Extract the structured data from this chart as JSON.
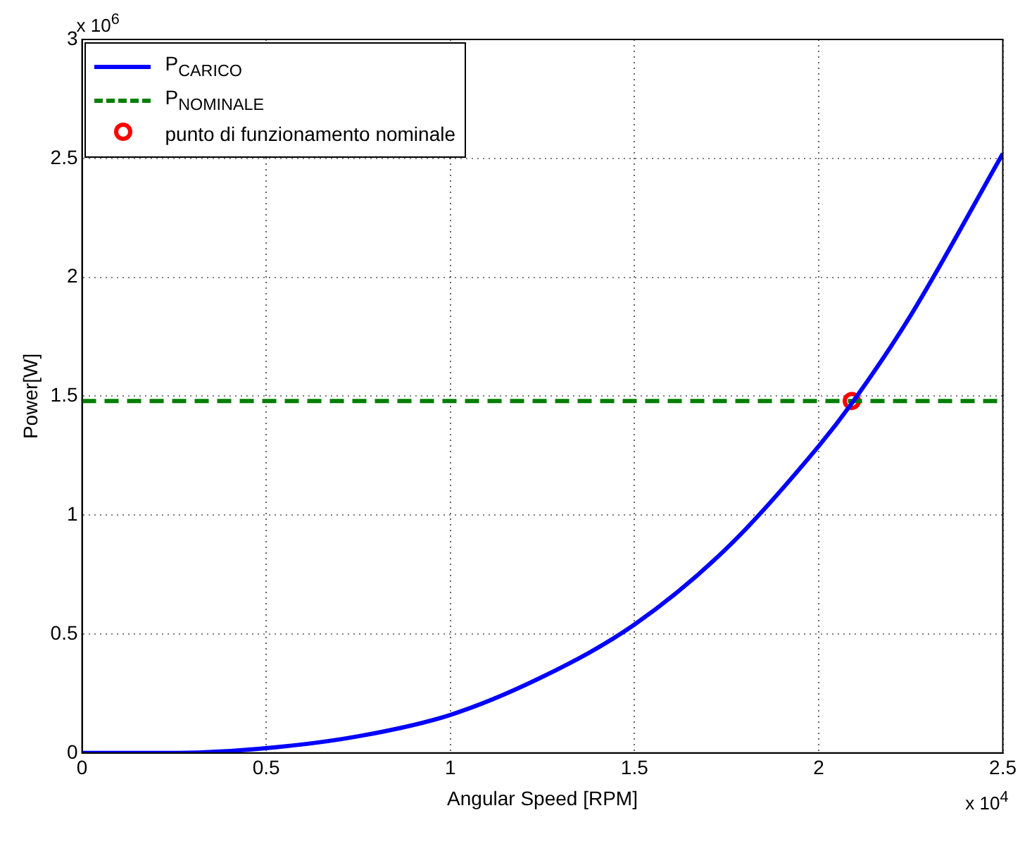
{
  "chart_data": {
    "type": "line",
    "xlabel": "Angular Speed [RPM]",
    "ylabel": "Power[W]",
    "annotations": [
      "x 10$^{6}$",
      "x 10$^{4}$"
    ],
    "xlim": [
      0,
      2.5
    ],
    "xticks": [
      0,
      0.5,
      1,
      1.5,
      2,
      2.5
    ],
    "ylim": [
      0,
      3
    ],
    "yticks": [
      0,
      0.5,
      1,
      1.5,
      2,
      2.5,
      3
    ],
    "grid": true,
    "legend": "top left",
    "series": [
      {
        "name": "P$_{CARICO}$",
        "type": "line",
        "color": "#0000ff",
        "line_style": "solid",
        "x": [
          0,
          0.25,
          0.5,
          0.75,
          1,
          1.25,
          1.5,
          1.75,
          2,
          2.09,
          2.25,
          2.5
        ],
        "values": [
          0,
          0,
          0.02,
          0.07,
          0.16,
          0.32,
          0.54,
          0.86,
          1.29,
          1.47,
          1.84,
          2.52
        ]
      },
      {
        "name": "P$_{NOMINALE}$",
        "type": "line",
        "color": "#007f00",
        "line_style": "dashed",
        "x": [
          0,
          2.5
        ],
        "values": [
          1.48,
          1.48
        ]
      },
      {
        "name": "punto di funzionamento nominale",
        "type": "scatter",
        "color": "#ff0000",
        "marker": "circle",
        "x": [
          2.09
        ],
        "values": [
          1.48
        ]
      }
    ]
  }
}
